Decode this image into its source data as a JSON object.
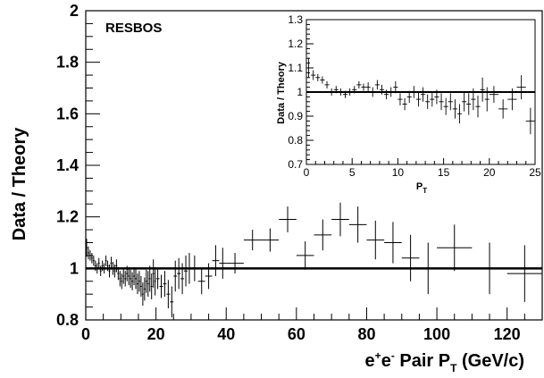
{
  "chart_data": [
    {
      "type": "scatter",
      "title": "",
      "model_label": "RESBOS",
      "ylabel": "Data / Theory",
      "xlabel_parts": [
        "e",
        "+",
        "e",
        "-",
        " Pair P",
        "T",
        " (GeV/c)"
      ],
      "xlim": [
        0,
        130
      ],
      "ylim": [
        0.8,
        2.0
      ],
      "x_ticks": [
        0,
        20,
        40,
        60,
        80,
        100,
        120
      ],
      "x_tick_labels": [
        "0",
        "20",
        "40",
        "60",
        "80",
        "100",
        "120"
      ],
      "y_ticks": [
        0.8,
        1.0,
        1.2,
        1.4,
        1.6,
        1.8,
        2.0
      ],
      "y_tick_labels": [
        "0.8",
        "1",
        "1.2",
        "1.4",
        "1.6",
        "1.8",
        "2"
      ],
      "reference_line": 1.0,
      "grid": false,
      "series": [
        {
          "points": [
            {
              "x": 0.25,
              "y": 1.08,
              "ex": 0.25,
              "ey": 0.035
            },
            {
              "x": 0.75,
              "y": 1.06,
              "ex": 0.25,
              "ey": 0.025
            },
            {
              "x": 1.25,
              "y": 1.05,
              "ex": 0.25,
              "ey": 0.02
            },
            {
              "x": 1.75,
              "y": 1.04,
              "ex": 0.25,
              "ey": 0.02
            },
            {
              "x": 2.25,
              "y": 1.03,
              "ex": 0.25,
              "ey": 0.02
            },
            {
              "x": 2.75,
              "y": 1.01,
              "ex": 0.25,
              "ey": 0.02
            },
            {
              "x": 3.25,
              "y": 1.0,
              "ex": 0.25,
              "ey": 0.02
            },
            {
              "x": 3.75,
              "y": 1.02,
              "ex": 0.25,
              "ey": 0.02
            },
            {
              "x": 4.25,
              "y": 0.99,
              "ex": 0.25,
              "ey": 0.02
            },
            {
              "x": 4.75,
              "y": 1.01,
              "ex": 0.25,
              "ey": 0.02
            },
            {
              "x": 5.25,
              "y": 1.0,
              "ex": 0.25,
              "ey": 0.02
            },
            {
              "x": 5.75,
              "y": 1.03,
              "ex": 0.25,
              "ey": 0.02
            },
            {
              "x": 6.25,
              "y": 1.01,
              "ex": 0.25,
              "ey": 0.02
            },
            {
              "x": 6.75,
              "y": 0.99,
              "ex": 0.25,
              "ey": 0.025
            },
            {
              "x": 7.25,
              "y": 1.02,
              "ex": 0.25,
              "ey": 0.025
            },
            {
              "x": 7.75,
              "y": 1.0,
              "ex": 0.25,
              "ey": 0.025
            },
            {
              "x": 8.25,
              "y": 0.99,
              "ex": 0.25,
              "ey": 0.025
            },
            {
              "x": 8.75,
              "y": 1.01,
              "ex": 0.25,
              "ey": 0.025
            },
            {
              "x": 9.25,
              "y": 0.98,
              "ex": 0.25,
              "ey": 0.025
            },
            {
              "x": 9.75,
              "y": 0.96,
              "ex": 0.25,
              "ey": 0.03
            },
            {
              "x": 10.25,
              "y": 0.95,
              "ex": 0.25,
              "ey": 0.03
            },
            {
              "x": 10.75,
              "y": 0.97,
              "ex": 0.25,
              "ey": 0.03
            },
            {
              "x": 11.25,
              "y": 0.96,
              "ex": 0.25,
              "ey": 0.03
            },
            {
              "x": 11.75,
              "y": 0.98,
              "ex": 0.25,
              "ey": 0.03
            },
            {
              "x": 12.25,
              "y": 0.97,
              "ex": 0.25,
              "ey": 0.035
            },
            {
              "x": 12.75,
              "y": 0.96,
              "ex": 0.25,
              "ey": 0.035
            },
            {
              "x": 13.25,
              "y": 0.95,
              "ex": 0.25,
              "ey": 0.035
            },
            {
              "x": 13.75,
              "y": 0.97,
              "ex": 0.25,
              "ey": 0.035
            },
            {
              "x": 14.25,
              "y": 0.96,
              "ex": 0.25,
              "ey": 0.04
            },
            {
              "x": 14.75,
              "y": 0.94,
              "ex": 0.25,
              "ey": 0.04
            },
            {
              "x": 15.25,
              "y": 0.95,
              "ex": 0.25,
              "ey": 0.04
            },
            {
              "x": 15.75,
              "y": 0.93,
              "ex": 0.25,
              "ey": 0.04
            },
            {
              "x": 16.25,
              "y": 0.9,
              "ex": 0.25,
              "ey": 0.045
            },
            {
              "x": 16.75,
              "y": 0.92,
              "ex": 0.25,
              "ey": 0.045
            },
            {
              "x": 17.25,
              "y": 0.95,
              "ex": 0.25,
              "ey": 0.045
            },
            {
              "x": 17.75,
              "y": 0.94,
              "ex": 0.25,
              "ey": 0.05
            },
            {
              "x": 18.25,
              "y": 0.96,
              "ex": 0.25,
              "ey": 0.05
            },
            {
              "x": 18.75,
              "y": 0.93,
              "ex": 0.25,
              "ey": 0.05
            },
            {
              "x": 19.25,
              "y": 0.98,
              "ex": 0.25,
              "ey": 0.055
            },
            {
              "x": 19.75,
              "y": 0.95,
              "ex": 0.25,
              "ey": 0.055
            },
            {
              "x": 20.5,
              "y": 0.96,
              "ex": 0.5,
              "ey": 0.04
            },
            {
              "x": 21.5,
              "y": 0.93,
              "ex": 0.5,
              "ey": 0.045
            },
            {
              "x": 22.5,
              "y": 0.94,
              "ex": 0.5,
              "ey": 0.05
            },
            {
              "x": 23.5,
              "y": 0.9,
              "ex": 0.5,
              "ey": 0.055
            },
            {
              "x": 24.5,
              "y": 0.87,
              "ex": 0.5,
              "ey": 0.06
            },
            {
              "x": 25.5,
              "y": 0.97,
              "ex": 0.5,
              "ey": 0.06
            },
            {
              "x": 26.5,
              "y": 0.98,
              "ex": 0.5,
              "ey": 0.06
            },
            {
              "x": 27.5,
              "y": 0.96,
              "ex": 0.5,
              "ey": 0.06
            },
            {
              "x": 28.5,
              "y": 0.99,
              "ex": 0.5,
              "ey": 0.06
            },
            {
              "x": 29.5,
              "y": 1.0,
              "ex": 0.5,
              "ey": 0.06
            },
            {
              "x": 31,
              "y": 1.0,
              "ex": 1,
              "ey": 0.05
            },
            {
              "x": 33,
              "y": 0.95,
              "ex": 1,
              "ey": 0.05
            },
            {
              "x": 35,
              "y": 0.97,
              "ex": 1,
              "ey": 0.05
            },
            {
              "x": 37,
              "y": 1.03,
              "ex": 1,
              "ey": 0.06
            },
            {
              "x": 39,
              "y": 1.02,
              "ex": 1,
              "ey": 0.06
            },
            {
              "x": 42.5,
              "y": 1.02,
              "ex": 2.5,
              "ey": 0.04
            },
            {
              "x": 47.5,
              "y": 1.11,
              "ex": 2.5,
              "ey": 0.04
            },
            {
              "x": 52.5,
              "y": 1.11,
              "ex": 2.5,
              "ey": 0.045
            },
            {
              "x": 57.5,
              "y": 1.19,
              "ex": 2.5,
              "ey": 0.05
            },
            {
              "x": 62.5,
              "y": 1.05,
              "ex": 2.5,
              "ey": 0.055
            },
            {
              "x": 67.5,
              "y": 1.13,
              "ex": 2.5,
              "ey": 0.06
            },
            {
              "x": 72.5,
              "y": 1.19,
              "ex": 2.5,
              "ey": 0.065
            },
            {
              "x": 77.5,
              "y": 1.17,
              "ex": 2.5,
              "ey": 0.07
            },
            {
              "x": 82.5,
              "y": 1.11,
              "ex": 2.5,
              "ey": 0.075
            },
            {
              "x": 87.5,
              "y": 1.1,
              "ex": 2.5,
              "ey": 0.08
            },
            {
              "x": 92.5,
              "y": 1.04,
              "ex": 2.5,
              "ey": 0.09
            },
            {
              "x": 97.5,
              "y": 1.0,
              "ex": 2.5,
              "ey": 0.1
            },
            {
              "x": 105,
              "y": 1.08,
              "ex": 5,
              "ey": 0.09
            },
            {
              "x": 115,
              "y": 1.0,
              "ex": 5,
              "ey": 0.1
            },
            {
              "x": 125,
              "y": 0.98,
              "ex": 5,
              "ey": 0.11
            }
          ]
        }
      ]
    },
    {
      "type": "scatter",
      "title": "",
      "ylabel": "Data / Theory",
      "xlabel_parts": [
        "P",
        "T"
      ],
      "xlim": [
        0,
        25
      ],
      "ylim": [
        0.7,
        1.3
      ],
      "x_ticks": [
        0,
        5,
        10,
        15,
        20,
        25
      ],
      "x_tick_labels": [
        "0",
        "5",
        "10",
        "15",
        "20",
        "25"
      ],
      "y_ticks": [
        0.7,
        0.8,
        0.9,
        1.0,
        1.1,
        1.2,
        1.3
      ],
      "y_tick_labels": [
        "0.7",
        "0.8",
        "0.9",
        "1",
        "1.1",
        "1.2",
        "1.3"
      ],
      "reference_line": 1.0,
      "grid": false,
      "series": [
        {
          "points": [
            {
              "x": 0.25,
              "y": 1.1,
              "ex": 0.25,
              "ey": 0.04
            },
            {
              "x": 0.75,
              "y": 1.07,
              "ex": 0.25,
              "ey": 0.02
            },
            {
              "x": 1.25,
              "y": 1.06,
              "ex": 0.25,
              "ey": 0.015
            },
            {
              "x": 1.75,
              "y": 1.05,
              "ex": 0.25,
              "ey": 0.015
            },
            {
              "x": 2.25,
              "y": 1.03,
              "ex": 0.25,
              "ey": 0.015
            },
            {
              "x": 2.75,
              "y": 1.0,
              "ex": 0.25,
              "ey": 0.015
            },
            {
              "x": 3.25,
              "y": 1.01,
              "ex": 0.25,
              "ey": 0.015
            },
            {
              "x": 3.75,
              "y": 1.0,
              "ex": 0.25,
              "ey": 0.015
            },
            {
              "x": 4.25,
              "y": 0.99,
              "ex": 0.25,
              "ey": 0.015
            },
            {
              "x": 4.75,
              "y": 1.0,
              "ex": 0.25,
              "ey": 0.015
            },
            {
              "x": 5.25,
              "y": 1.01,
              "ex": 0.25,
              "ey": 0.015
            },
            {
              "x": 5.75,
              "y": 1.03,
              "ex": 0.25,
              "ey": 0.015
            },
            {
              "x": 6.25,
              "y": 1.02,
              "ex": 0.25,
              "ey": 0.015
            },
            {
              "x": 6.75,
              "y": 1.02,
              "ex": 0.25,
              "ey": 0.02
            },
            {
              "x": 7.25,
              "y": 1.0,
              "ex": 0.25,
              "ey": 0.02
            },
            {
              "x": 7.75,
              "y": 1.03,
              "ex": 0.25,
              "ey": 0.02
            },
            {
              "x": 8.25,
              "y": 1.01,
              "ex": 0.25,
              "ey": 0.02
            },
            {
              "x": 8.75,
              "y": 0.99,
              "ex": 0.25,
              "ey": 0.02
            },
            {
              "x": 9.25,
              "y": 1.0,
              "ex": 0.25,
              "ey": 0.02
            },
            {
              "x": 9.75,
              "y": 1.02,
              "ex": 0.25,
              "ey": 0.025
            },
            {
              "x": 10.25,
              "y": 0.97,
              "ex": 0.25,
              "ey": 0.025
            },
            {
              "x": 10.75,
              "y": 0.95,
              "ex": 0.25,
              "ey": 0.025
            },
            {
              "x": 11.25,
              "y": 0.98,
              "ex": 0.25,
              "ey": 0.025
            },
            {
              "x": 11.75,
              "y": 1.0,
              "ex": 0.25,
              "ey": 0.025
            },
            {
              "x": 12.25,
              "y": 0.97,
              "ex": 0.25,
              "ey": 0.03
            },
            {
              "x": 12.75,
              "y": 0.99,
              "ex": 0.25,
              "ey": 0.03
            },
            {
              "x": 13.25,
              "y": 0.96,
              "ex": 0.25,
              "ey": 0.03
            },
            {
              "x": 13.75,
              "y": 0.97,
              "ex": 0.25,
              "ey": 0.03
            },
            {
              "x": 14.25,
              "y": 0.98,
              "ex": 0.25,
              "ey": 0.03
            },
            {
              "x": 14.75,
              "y": 0.96,
              "ex": 0.25,
              "ey": 0.035
            },
            {
              "x": 15.25,
              "y": 0.94,
              "ex": 0.25,
              "ey": 0.035
            },
            {
              "x": 15.75,
              "y": 0.96,
              "ex": 0.25,
              "ey": 0.035
            },
            {
              "x": 16.25,
              "y": 0.93,
              "ex": 0.25,
              "ey": 0.04
            },
            {
              "x": 16.75,
              "y": 0.91,
              "ex": 0.25,
              "ey": 0.04
            },
            {
              "x": 17.25,
              "y": 0.96,
              "ex": 0.25,
              "ey": 0.04
            },
            {
              "x": 17.75,
              "y": 0.95,
              "ex": 0.25,
              "ey": 0.045
            },
            {
              "x": 18.25,
              "y": 0.97,
              "ex": 0.25,
              "ey": 0.045
            },
            {
              "x": 18.75,
              "y": 0.94,
              "ex": 0.25,
              "ey": 0.045
            },
            {
              "x": 19.25,
              "y": 1.01,
              "ex": 0.25,
              "ey": 0.05
            },
            {
              "x": 19.75,
              "y": 0.97,
              "ex": 0.25,
              "ey": 0.05
            },
            {
              "x": 20.5,
              "y": 0.99,
              "ex": 0.5,
              "ey": 0.035
            },
            {
              "x": 21.5,
              "y": 0.93,
              "ex": 0.5,
              "ey": 0.04
            },
            {
              "x": 22.5,
              "y": 0.97,
              "ex": 0.5,
              "ey": 0.045
            },
            {
              "x": 23.5,
              "y": 1.02,
              "ex": 0.5,
              "ey": 0.05
            },
            {
              "x": 24.5,
              "y": 0.88,
              "ex": 0.5,
              "ey": 0.055
            }
          ]
        }
      ]
    }
  ]
}
